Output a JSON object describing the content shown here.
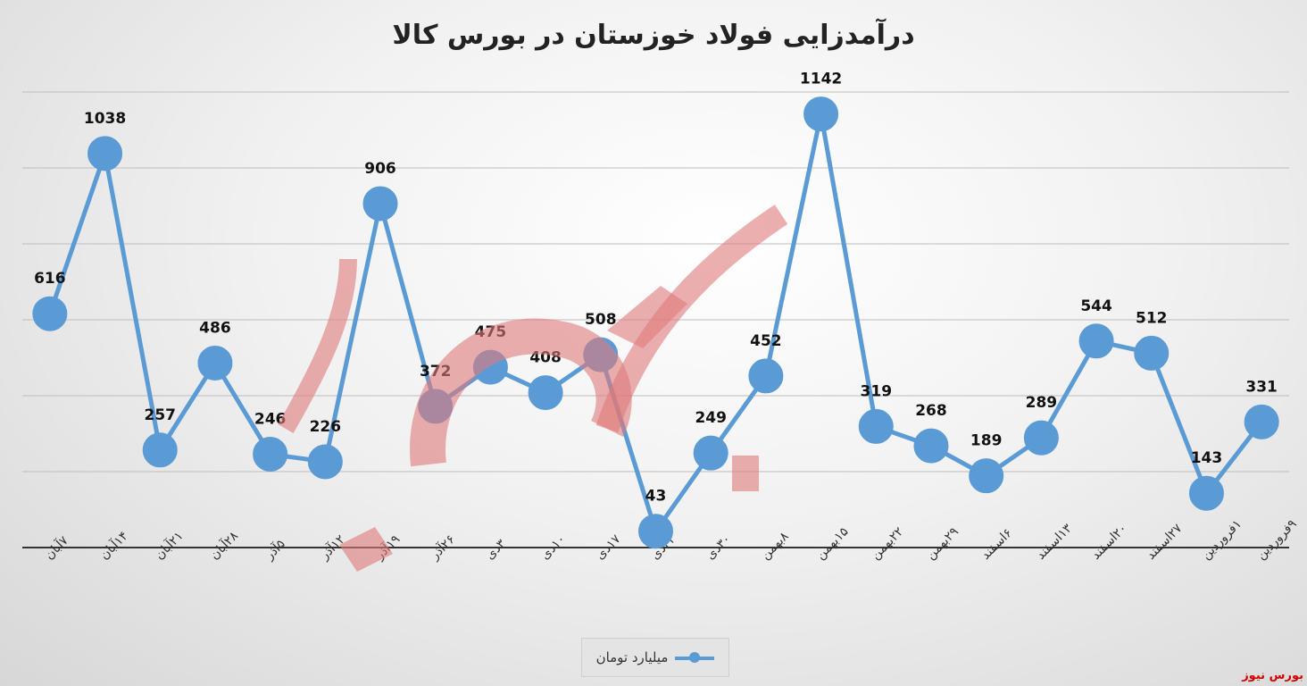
{
  "brand_color": "#5b9bd5",
  "watermark_text": "بورس نیوز",
  "chart_data": {
    "type": "line",
    "title": "درآمدزایی فولاد خوزستان در بورس کالا",
    "categories": [
      "۷آبان",
      "۱۴آبان",
      "۲۱آبان",
      "۲۸آبان",
      "۵آذر",
      "۱۲آذر",
      "۱۹آذر",
      "۲۶آذر",
      "۳دی",
      "۱۰دی",
      "۱۷دی",
      "۲۴دی",
      "۳۰دی",
      "۸بهمن",
      "۱۵بهمن",
      "۲۲بهمن",
      "۲۹بهمن",
      "۶اسفند",
      "۱۳اسفند",
      "۲۰اسفند",
      "۲۷اسفند",
      "۱فروردین",
      "۹فروردین"
    ],
    "series": [
      {
        "name": "میلیارد تومان",
        "values": [
          616,
          1038,
          257,
          486,
          246,
          226,
          906,
          372,
          475,
          408,
          508,
          43,
          249,
          452,
          1142,
          319,
          268,
          189,
          289,
          544,
          512,
          143,
          331
        ]
      }
    ],
    "data_labels": [
      "616",
      "1038",
      "257",
      "486",
      "246",
      "226",
      "906",
      "372",
      "475",
      "408",
      "508",
      "43",
      "249",
      "452",
      "1142",
      "319",
      "268",
      "189",
      "289",
      "544",
      "512",
      "143",
      "331"
    ],
    "ylim": [
      0,
      1200
    ],
    "grid": true,
    "legend_position": "bottom"
  },
  "brand_label": "بورس نیوز"
}
